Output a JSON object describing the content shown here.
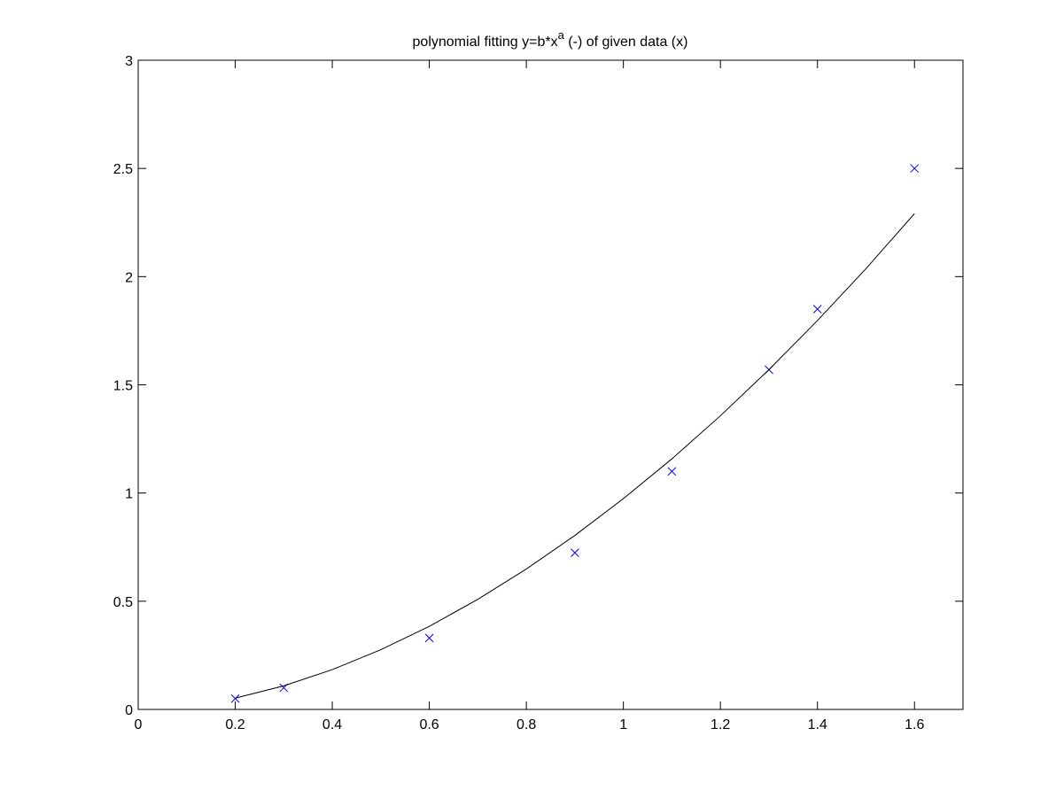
{
  "chart_data": {
    "type": "scatter",
    "title": [
      "polynomial fitting y=b*x",
      "a",
      " (-) of given data (x)"
    ],
    "xlim": [
      0,
      1.7
    ],
    "ylim": [
      0,
      3
    ],
    "xticks": [
      0,
      0.2,
      0.4,
      0.6,
      0.8,
      1,
      1.2,
      1.4,
      1.6
    ],
    "yticks": [
      0,
      0.5,
      1,
      1.5,
      2,
      2.5,
      3
    ],
    "grid": false,
    "series": [
      {
        "kind": "scatter",
        "marker": "x",
        "color": "#0000ff",
        "x": [
          0.2,
          0.3,
          0.6,
          0.9,
          1.1,
          1.3,
          1.4,
          1.6
        ],
        "values": [
          0.05,
          0.1,
          0.33,
          0.724,
          1.1,
          1.57,
          1.85,
          2.5
        ]
      },
      {
        "kind": "line",
        "color": "#000000",
        "x": [
          0.2,
          0.3,
          0.4,
          0.5,
          0.6,
          0.7,
          0.8,
          0.9,
          1.0,
          1.1,
          1.2,
          1.3,
          1.4,
          1.5,
          1.6
        ],
        "values": [
          0.052,
          0.109,
          0.184,
          0.276,
          0.384,
          0.509,
          0.649,
          0.804,
          0.974,
          1.158,
          1.357,
          1.57,
          1.797,
          2.037,
          2.291
        ]
      }
    ]
  }
}
